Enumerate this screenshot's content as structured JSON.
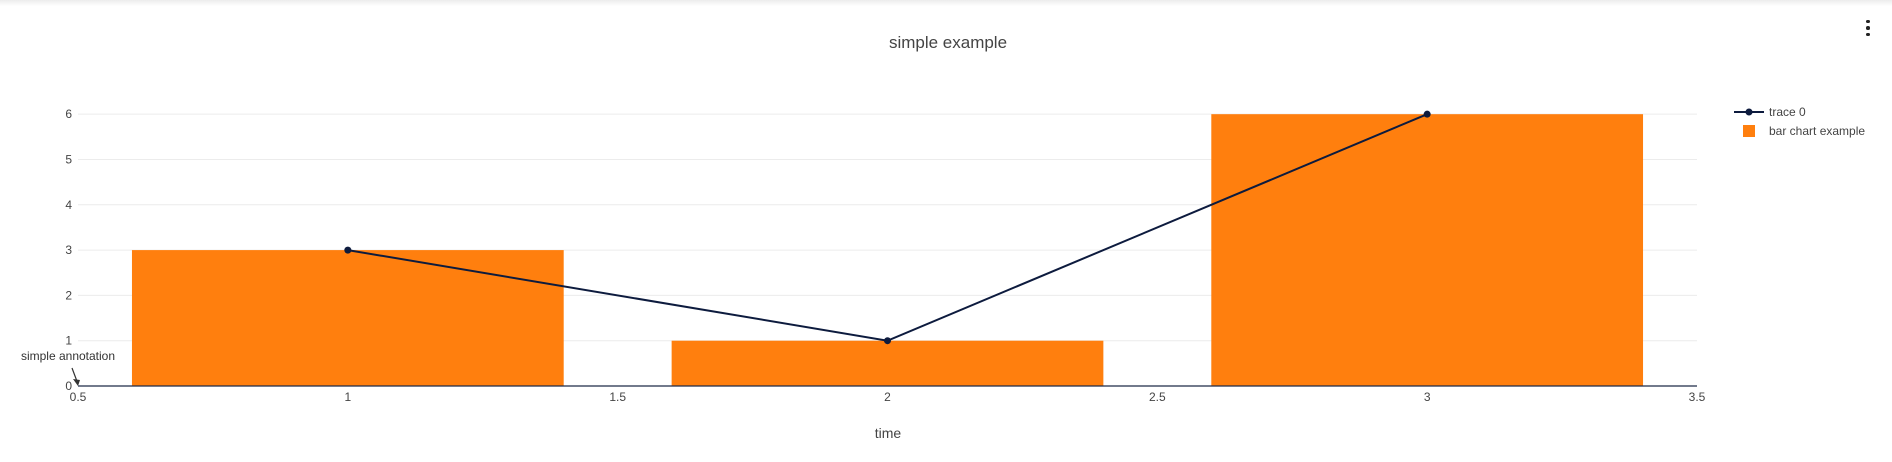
{
  "menu": {
    "icon": "more-vertical-icon"
  },
  "chart_data": {
    "type": "bar",
    "title": "simple example",
    "xlabel": "time",
    "ylabel": "",
    "xlim": [
      0.5,
      3.5
    ],
    "ylim": [
      0,
      6.6
    ],
    "grid": true,
    "legend_position": "top-right",
    "x_ticks": [
      "0.5",
      "1",
      "1.5",
      "2",
      "2.5",
      "3",
      "3.5"
    ],
    "y_ticks": [
      "0",
      "1",
      "2",
      "3",
      "4",
      "5",
      "6"
    ],
    "series": [
      {
        "name": "trace 0",
        "type": "line",
        "mode": "lines+markers",
        "color": "#0d1b3e",
        "x": [
          1,
          2,
          3
        ],
        "y": [
          3,
          1,
          6
        ]
      },
      {
        "name": "bar chart example",
        "type": "bar",
        "color": "#ff7f0e",
        "x": [
          1,
          2,
          3
        ],
        "y": [
          3,
          1,
          6
        ],
        "bar_width": 0.8
      }
    ],
    "annotations": [
      {
        "text": "simple annotation",
        "x": 0.5,
        "y": 0,
        "arrow": true
      }
    ]
  }
}
